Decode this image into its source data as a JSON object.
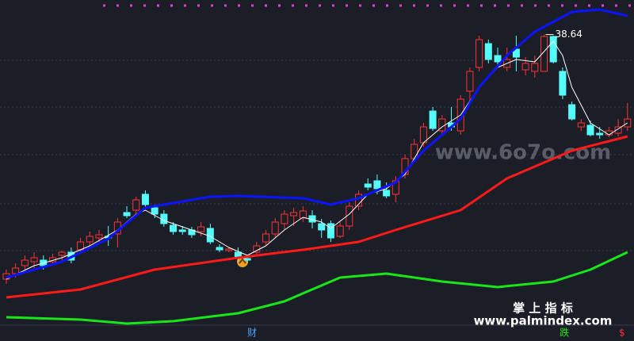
{
  "chart_data": {
    "type": "candlestick",
    "xlim": [
      -0.68,
      67.7
    ],
    "ylim": [
      0,
      43
    ],
    "up_color": "#ff3232",
    "down_color": "#54fcfc",
    "x": [
      0,
      1,
      2,
      3,
      4,
      5,
      6,
      7,
      8,
      9,
      10,
      11,
      12,
      13,
      14,
      15,
      16,
      17,
      18,
      19,
      20,
      21,
      22,
      23,
      24,
      25,
      26,
      27,
      28,
      29,
      30,
      31,
      32,
      33,
      34,
      35,
      36,
      37,
      38,
      39,
      40,
      41,
      42,
      43,
      44,
      45,
      46,
      47,
      48,
      49,
      50,
      51,
      52,
      53,
      54,
      55,
      56,
      57,
      58,
      59,
      60,
      61,
      62,
      63,
      64,
      65,
      66,
      67
    ],
    "open": [
      7.8,
      8.5,
      9.5,
      10.0,
      10.2,
      10.0,
      10.8,
      11.2,
      11.5,
      12.5,
      13.0,
      13.2,
      13.5,
      16.2,
      16.5,
      18.5,
      16.8,
      16.0,
      14.6,
      14.0,
      14.0,
      13.8,
      14.2,
      11.8,
      11.4,
      11.2,
      10.4,
      11.2,
      12.5,
      13.5,
      14.8,
      15.8,
      15.5,
      15.8,
      14.8,
      14.8,
      13.2,
      14.5,
      17.0,
      19.8,
      20.2,
      19.0,
      18.5,
      21.0,
      23.0,
      25.0,
      29.0,
      26.5,
      27.5,
      26.5,
      31.5,
      34.5,
      37.5,
      36.0,
      34.5,
      36.8,
      34.2,
      34.0,
      34.0,
      38.4,
      34.0,
      29.8,
      27.0,
      27.2,
      26.2,
      26.0,
      26.2,
      27.0
    ],
    "high": [
      9.0,
      9.8,
      10.8,
      11.2,
      10.8,
      11.0,
      11.4,
      11.8,
      13.0,
      13.8,
      14.0,
      14.5,
      15.5,
      17.0,
      18.2,
      19.0,
      17.2,
      16.5,
      15.0,
      14.5,
      14.4,
      15.0,
      14.8,
      12.2,
      11.8,
      11.8,
      10.8,
      12.5,
      14.0,
      15.5,
      16.5,
      16.8,
      17.0,
      16.5,
      15.4,
      15.2,
      15.0,
      17.5,
      19.0,
      20.5,
      21.0,
      20.0,
      20.8,
      23.5,
      25.5,
      27.5,
      29.5,
      28.5,
      29.5,
      31.0,
      34.5,
      38.5,
      38.0,
      37.0,
      37.0,
      38.5,
      35.8,
      36.0,
      38.64,
      38.5,
      34.5,
      30.2,
      28.0,
      27.8,
      27.0,
      27.0,
      28.0,
      30.0
    ],
    "low": [
      7.2,
      8.0,
      9.0,
      9.2,
      9.0,
      9.5,
      10.0,
      9.8,
      11.0,
      12.0,
      12.5,
      12.0,
      11.8,
      15.5,
      16.0,
      16.8,
      15.5,
      14.4,
      13.4,
      13.4,
      13.0,
      13.2,
      12.2,
      11.2,
      11.2,
      10.0,
      9.8,
      10.8,
      12.0,
      13.0,
      14.0,
      14.5,
      15.0,
      14.2,
      13.0,
      12.5,
      13.0,
      14.0,
      16.5,
      19.0,
      18.5,
      18.0,
      17.5,
      20.5,
      22.5,
      24.5,
      26.5,
      26.0,
      26.5,
      26.0,
      30.0,
      34.0,
      35.0,
      34.5,
      34.0,
      34.0,
      33.5,
      33.2,
      34.0,
      35.0,
      30.5,
      27.8,
      26.5,
      25.8,
      25.5,
      25.7,
      25.8,
      26.5
    ],
    "close": [
      8.5,
      9.2,
      10.2,
      10.5,
      9.5,
      10.5,
      11.2,
      10.2,
      12.5,
      13.2,
      13.4,
      13.0,
      15.0,
      15.8,
      17.8,
      17.2,
      16.0,
      14.8,
      13.8,
      13.8,
      13.4,
      14.4,
      12.5,
      11.5,
      11.6,
      10.5,
      10.2,
      12.0,
      13.5,
      15.0,
      16.0,
      16.2,
      16.4,
      15.0,
      14.0,
      13.0,
      14.5,
      17.0,
      18.5,
      19.4,
      19.2,
      18.3,
      20.2,
      23.0,
      24.8,
      27.0,
      26.8,
      28.0,
      27.0,
      30.5,
      34.0,
      38.0,
      35.5,
      35.2,
      35.5,
      35.8,
      35.0,
      35.0,
      38.4,
      35.2,
      31.0,
      28.0,
      27.5,
      26.0,
      26.0,
      26.5,
      27.0,
      28.0
    ],
    "lines": [
      {
        "color": "#ffffff",
        "width": 1,
        "x": [
          0,
          3,
          6,
          9,
          12,
          14,
          15,
          17,
          20,
          22,
          24,
          26,
          28,
          30,
          32,
          34,
          35,
          37,
          39,
          41,
          43,
          45,
          47,
          49,
          51,
          53,
          55,
          57,
          59,
          60,
          61,
          63,
          65,
          67
        ],
        "values": [
          7.8,
          9.5,
          10.5,
          12.0,
          14.0,
          16.0,
          16.5,
          15.2,
          14.0,
          13.2,
          11.8,
          10.8,
          12.0,
          14.0,
          15.6,
          15.0,
          14.2,
          16.0,
          18.5,
          19.2,
          21.0,
          25.0,
          27.0,
          28.5,
          32.0,
          34.5,
          35.5,
          35.2,
          37.8,
          36.0,
          32.0,
          27.5,
          26.0,
          27.5
        ]
      },
      {
        "color": "#0a14ff",
        "width": 3,
        "x": [
          0,
          6,
          11,
          15,
          22,
          25,
          32,
          35,
          38,
          42,
          45,
          49,
          51,
          54,
          57,
          61,
          64,
          67
        ],
        "values": [
          8.0,
          10.0,
          12.9,
          16.8,
          18.2,
          18.3,
          18.0,
          17.2,
          18.0,
          20.0,
          24.0,
          28.0,
          32.0,
          36.0,
          39.0,
          41.5,
          41.8,
          41.0
        ]
      },
      {
        "color": "#ff1a1a",
        "width": 3,
        "x": [
          0,
          8,
          16,
          25,
          32,
          38,
          42,
          49,
          54,
          61,
          67
        ],
        "values": [
          5.5,
          6.5,
          9.0,
          10.5,
          11.5,
          12.5,
          14.0,
          16.5,
          20.5,
          24.0,
          25.8
        ]
      },
      {
        "color": "#19e619",
        "width": 3,
        "x": [
          0,
          8,
          13,
          18,
          25,
          30,
          36,
          41,
          47,
          53,
          59,
          63,
          67
        ],
        "values": [
          3.0,
          2.7,
          2.2,
          2.5,
          3.5,
          5.0,
          8.0,
          8.5,
          7.5,
          6.8,
          7.5,
          9.0,
          11.2
        ]
      }
    ],
    "annotations": [
      {
        "text": "38.64",
        "x": 58,
        "y": 38.64
      }
    ],
    "markers": [
      {
        "text": "财",
        "x": 26.5,
        "color": "#4aa3ff"
      },
      {
        "text": "跌",
        "x": 60.2,
        "color": "#19e619"
      },
      {
        "text": "$",
        "x": 66.4,
        "color": "#ff3232"
      }
    ],
    "watermark": "www.6o7o.com",
    "brand": "掌 上 指 标",
    "brand_url": "www.palmindex.com"
  }
}
